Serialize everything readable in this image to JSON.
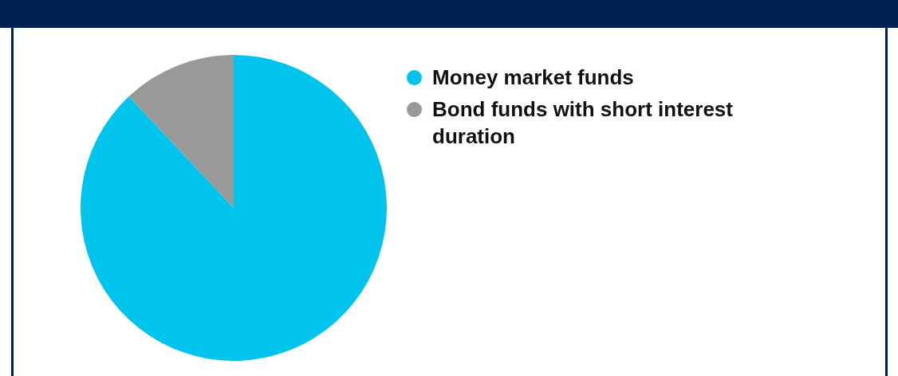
{
  "chart_data": {
    "type": "pie",
    "categories": [
      "Money market funds",
      "Bond funds with short interest duration"
    ],
    "values": [
      88,
      12
    ],
    "colors": [
      "#00c4eb",
      "#999999"
    ],
    "legend": "right"
  }
}
